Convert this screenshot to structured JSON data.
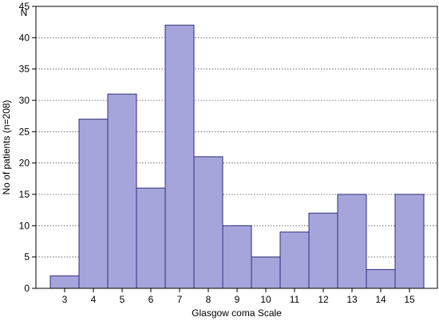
{
  "chart_data": {
    "type": "bar",
    "title": "",
    "xlabel": "Glasgow coma Scale",
    "ylabel": "No of patients (n=208)",
    "y_unit_label": "N",
    "categories": [
      "3",
      "4",
      "5",
      "6",
      "7",
      "8",
      "9",
      "10",
      "11",
      "12",
      "13",
      "14",
      "15"
    ],
    "values": [
      2,
      27,
      31,
      16,
      42,
      21,
      10,
      5,
      9,
      12,
      15,
      3,
      15
    ],
    "ylim": [
      0,
      45
    ],
    "yticks": [
      0,
      5,
      10,
      15,
      20,
      25,
      30,
      35,
      40,
      45
    ],
    "grid": "horizontal dotted",
    "bar_fill": "#a5a5dc",
    "bar_stroke": "#2e2e7a"
  }
}
